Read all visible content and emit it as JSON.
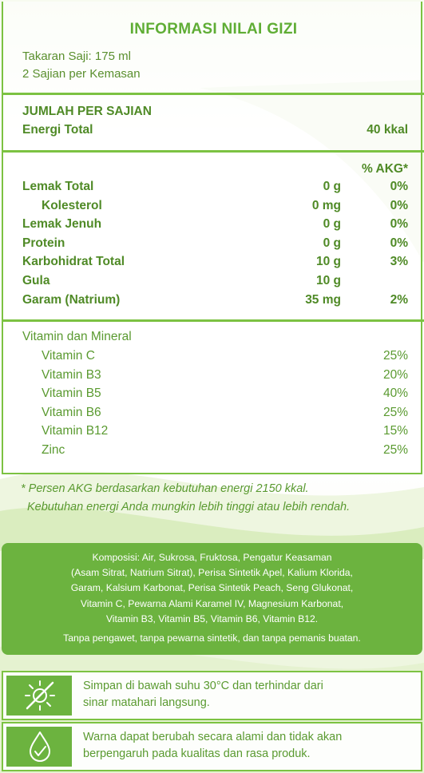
{
  "title": "INFORMASI NILAI GIZI",
  "serving": {
    "size": "Takaran Saji: 175 ml",
    "per_pack": "2 Sajian per Kemasan"
  },
  "amount_header": "JUMLAH PER SAJIAN",
  "energy": {
    "label": "Energi Total",
    "value": "40 kkal"
  },
  "akg_header": "% AKG*",
  "nutrients": [
    {
      "label": "Lemak Total",
      "amount": "0 g",
      "pct": "0%",
      "indent": false
    },
    {
      "label": "Kolesterol",
      "amount": "0 mg",
      "pct": "0%",
      "indent": true
    },
    {
      "label": "Lemak Jenuh",
      "amount": "0 g",
      "pct": "0%",
      "indent": false
    },
    {
      "label": "Protein",
      "amount": "0 g",
      "pct": "0%",
      "indent": false
    },
    {
      "label": "Karbohidrat Total",
      "amount": "10 g",
      "pct": "3%",
      "indent": false
    },
    {
      "label": "Gula",
      "amount": "10 g",
      "pct": "",
      "indent": false
    },
    {
      "label": "Garam (Natrium)",
      "amount": "35 mg",
      "pct": "2%",
      "indent": false
    }
  ],
  "vitamins_header": "Vitamin dan Mineral",
  "vitamins": [
    {
      "label": "Vitamin C",
      "pct": "25%"
    },
    {
      "label": "Vitamin B3",
      "pct": "20%"
    },
    {
      "label": "Vitamin B5",
      "pct": "40%"
    },
    {
      "label": "Vitamin B6",
      "pct": "25%"
    },
    {
      "label": "Vitamin B12",
      "pct": "15%"
    },
    {
      "label": "Zinc",
      "pct": "25%"
    }
  ],
  "footnote": {
    "line1": "* Persen AKG berdasarkan kebutuhan energi 2150 kkal.",
    "line2": "Kebutuhan energi Anda mungkin lebih tinggi atau lebih rendah."
  },
  "composition": {
    "lines": [
      "Komposisi: Air, Sukrosa, Fruktosa, Pengatur Keasaman",
      "(Asam Sitrat, Natrium Sitrat), Perisa Sintetik Apel, Kalium Klorida,",
      "Garam, Kalsium Karbonat, Perisa Sintetik Peach, Seng Glukonat,",
      "Vitamin C, Pewarna Alami Karamel IV, Magnesium Karbonat,",
      "Vitamin B3, Vitamin B5, Vitamin B6, Vitamin B12."
    ],
    "note": "Tanpa pengawet, tanpa pewarna sintetik, dan tanpa pemanis buatan."
  },
  "storage": {
    "icon": "no-sun-icon",
    "line1": "Simpan di bawah suhu 30°C dan terhindar dari",
    "line2": "sinar matahari langsung."
  },
  "color_note": {
    "icon": "color-drop-icon",
    "line1": "Warna dapat berubah secara alami dan tidak akan",
    "line2": "berpengaruh pada kualitas dan rasa produk."
  },
  "colors": {
    "accent": "#7cc242",
    "text_green": "#5a8f2e",
    "box_green": "#6cb33f"
  }
}
